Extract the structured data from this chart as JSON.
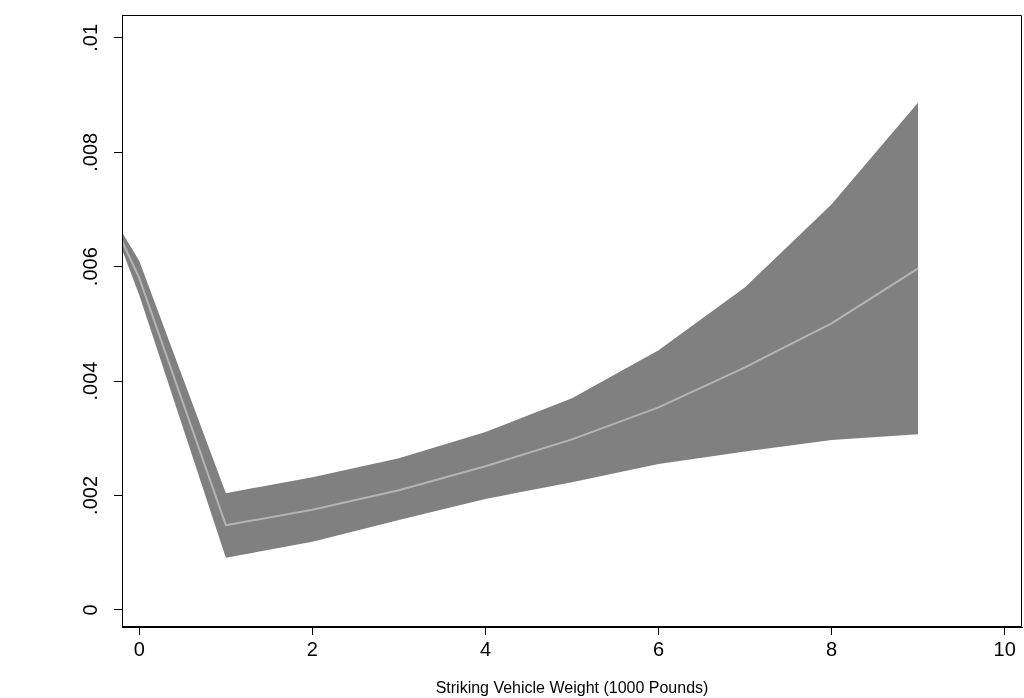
{
  "chart_data": {
    "type": "line",
    "xlabel": "Striking Vehicle Weight (1000 Pounds)",
    "x": [
      -0.2,
      0,
      1,
      2,
      3,
      4,
      5,
      6,
      7,
      8,
      9
    ],
    "series": [
      {
        "color": "#b4b4b4",
        "values": [
          0.00645,
          0.0058,
          0.00148,
          0.00175,
          0.00209,
          0.00251,
          0.00298,
          0.00354,
          0.00424,
          0.00501,
          0.00597
        ],
        "lower": [
          0.0063,
          0.0055,
          0.00091,
          0.00119,
          0.00157,
          0.00194,
          0.00223,
          0.00255,
          0.00277,
          0.00297,
          0.00307
        ],
        "upper": [
          0.0066,
          0.0061,
          0.00204,
          0.00232,
          0.00265,
          0.00311,
          0.0037,
          0.00454,
          0.00564,
          0.00709,
          0.00887
        ]
      }
    ],
    "xlim": [
      -0.2,
      10.2
    ],
    "xticks": [
      0,
      2,
      4,
      6,
      8,
      10
    ],
    "ylim": [
      -0.0003,
      0.0104
    ],
    "yticks": [
      0,
      {
        "value": 0.002,
        "label": ".002"
      },
      {
        "value": 0.004,
        "label": ".004"
      },
      {
        "value": 0.006,
        "label": ".006"
      },
      {
        "value": 0.008,
        "label": ".008"
      },
      {
        "value": 0.01,
        "label": ".01"
      }
    ],
    "grid": false,
    "legend": false,
    "marker": "none"
  }
}
